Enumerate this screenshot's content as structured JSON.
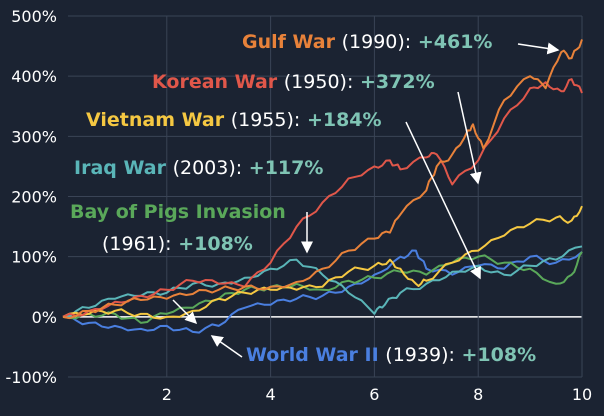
{
  "chart_data": {
    "type": "line",
    "title": "",
    "xlabel": "",
    "ylabel": "",
    "xlim": [
      0,
      10
    ],
    "ylim": [
      -100,
      500
    ],
    "xticks": [
      2,
      4,
      6,
      8,
      10
    ],
    "xtick_labels": [
      "2",
      "4",
      "6",
      "8",
      "10"
    ],
    "yticks": [
      -100,
      0,
      100,
      200,
      300,
      400,
      500
    ],
    "ytick_labels": [
      "-100%",
      "0%",
      "100%",
      "200%",
      "300%",
      "400%",
      "500%"
    ],
    "grid": true,
    "series": [
      {
        "name": "Gulf War",
        "year": "(1990):",
        "final": "+461%",
        "color": "#e8823a",
        "x": [
          0,
          0.5,
          1,
          1.5,
          2,
          2.5,
          3,
          3.5,
          4,
          4.5,
          5,
          5.5,
          6,
          6.3,
          6.5,
          7,
          7.2,
          7.5,
          7.8,
          7.9,
          8.1,
          8.5,
          9,
          9.3,
          9.6,
          9.8,
          10
        ],
        "y": [
          0,
          10,
          20,
          28,
          30,
          38,
          45,
          50,
          50,
          58,
          80,
          110,
          130,
          140,
          170,
          210,
          250,
          270,
          310,
          320,
          280,
          360,
          400,
          380,
          440,
          430,
          461
        ]
      },
      {
        "name": "Korean War",
        "year": "(1950):",
        "final": "+372%",
        "color": "#e0574a",
        "x": [
          0,
          0.5,
          1,
          1.5,
          2,
          2.5,
          3,
          3.5,
          4,
          4.5,
          5,
          5.5,
          6,
          6.3,
          6.5,
          7,
          7.2,
          7.5,
          8,
          8.5,
          9,
          9.3,
          9.6,
          9.8,
          10
        ],
        "y": [
          0,
          10,
          25,
          35,
          45,
          60,
          55,
          50,
          90,
          150,
          190,
          230,
          250,
          260,
          245,
          265,
          270,
          220,
          260,
          330,
          380,
          390,
          375,
          395,
          372
        ]
      },
      {
        "name": "Vietnam War",
        "year": "(1955):",
        "final": "+184%",
        "color": "#f5c842",
        "x": [
          0,
          0.5,
          1,
          1.5,
          2,
          2.5,
          3,
          3.5,
          4,
          4.5,
          5,
          5.5,
          6,
          6.3,
          6.5,
          6.8,
          7,
          7.5,
          8,
          8.5,
          9,
          9.5,
          9.8,
          10
        ],
        "y": [
          0,
          5,
          10,
          5,
          0,
          10,
          30,
          40,
          45,
          45,
          50,
          75,
          85,
          95,
          80,
          55,
          60,
          90,
          110,
          135,
          155,
          165,
          160,
          184
        ]
      },
      {
        "name": "Iraq War",
        "year": "(2003):",
        "final": "+117%",
        "color": "#5ab5b8",
        "x": [
          0,
          0.5,
          1,
          1.5,
          2,
          2.5,
          3,
          3.5,
          4,
          4.5,
          5,
          5.5,
          6,
          6.2,
          6.5,
          7,
          7.5,
          8,
          8.5,
          9,
          9.5,
          10
        ],
        "y": [
          0,
          15,
          30,
          35,
          40,
          55,
          55,
          65,
          80,
          95,
          70,
          40,
          5,
          20,
          40,
          55,
          75,
          85,
          70,
          85,
          95,
          117
        ]
      },
      {
        "name": "Bay of Pigs Invasion",
        "year": "(1961):",
        "final": "+108%",
        "color": "#5aa85a",
        "x": [
          0,
          0.5,
          1,
          1.5,
          2,
          2.5,
          3,
          3.5,
          4,
          4.5,
          5,
          5.5,
          6,
          6.5,
          7,
          7.5,
          8,
          8.5,
          9,
          9.5,
          9.8,
          10
        ],
        "y": [
          0,
          5,
          5,
          -10,
          5,
          15,
          30,
          45,
          50,
          55,
          45,
          60,
          65,
          75,
          70,
          90,
          100,
          90,
          80,
          55,
          70,
          108
        ]
      },
      {
        "name": "World War II",
        "year": "(1939):",
        "final": "+108%",
        "color": "#4a7fe0",
        "x": [
          0,
          0.5,
          1,
          1.5,
          2,
          2.5,
          3,
          3.5,
          4,
          4.5,
          5,
          5.5,
          6,
          6.5,
          6.8,
          7,
          7.5,
          8,
          8.5,
          9,
          9.5,
          10
        ],
        "y": [
          0,
          -10,
          -15,
          -20,
          -15,
          -25,
          -15,
          15,
          20,
          30,
          35,
          50,
          70,
          100,
          110,
          80,
          70,
          85,
          80,
          100,
          90,
          108
        ]
      }
    ]
  }
}
